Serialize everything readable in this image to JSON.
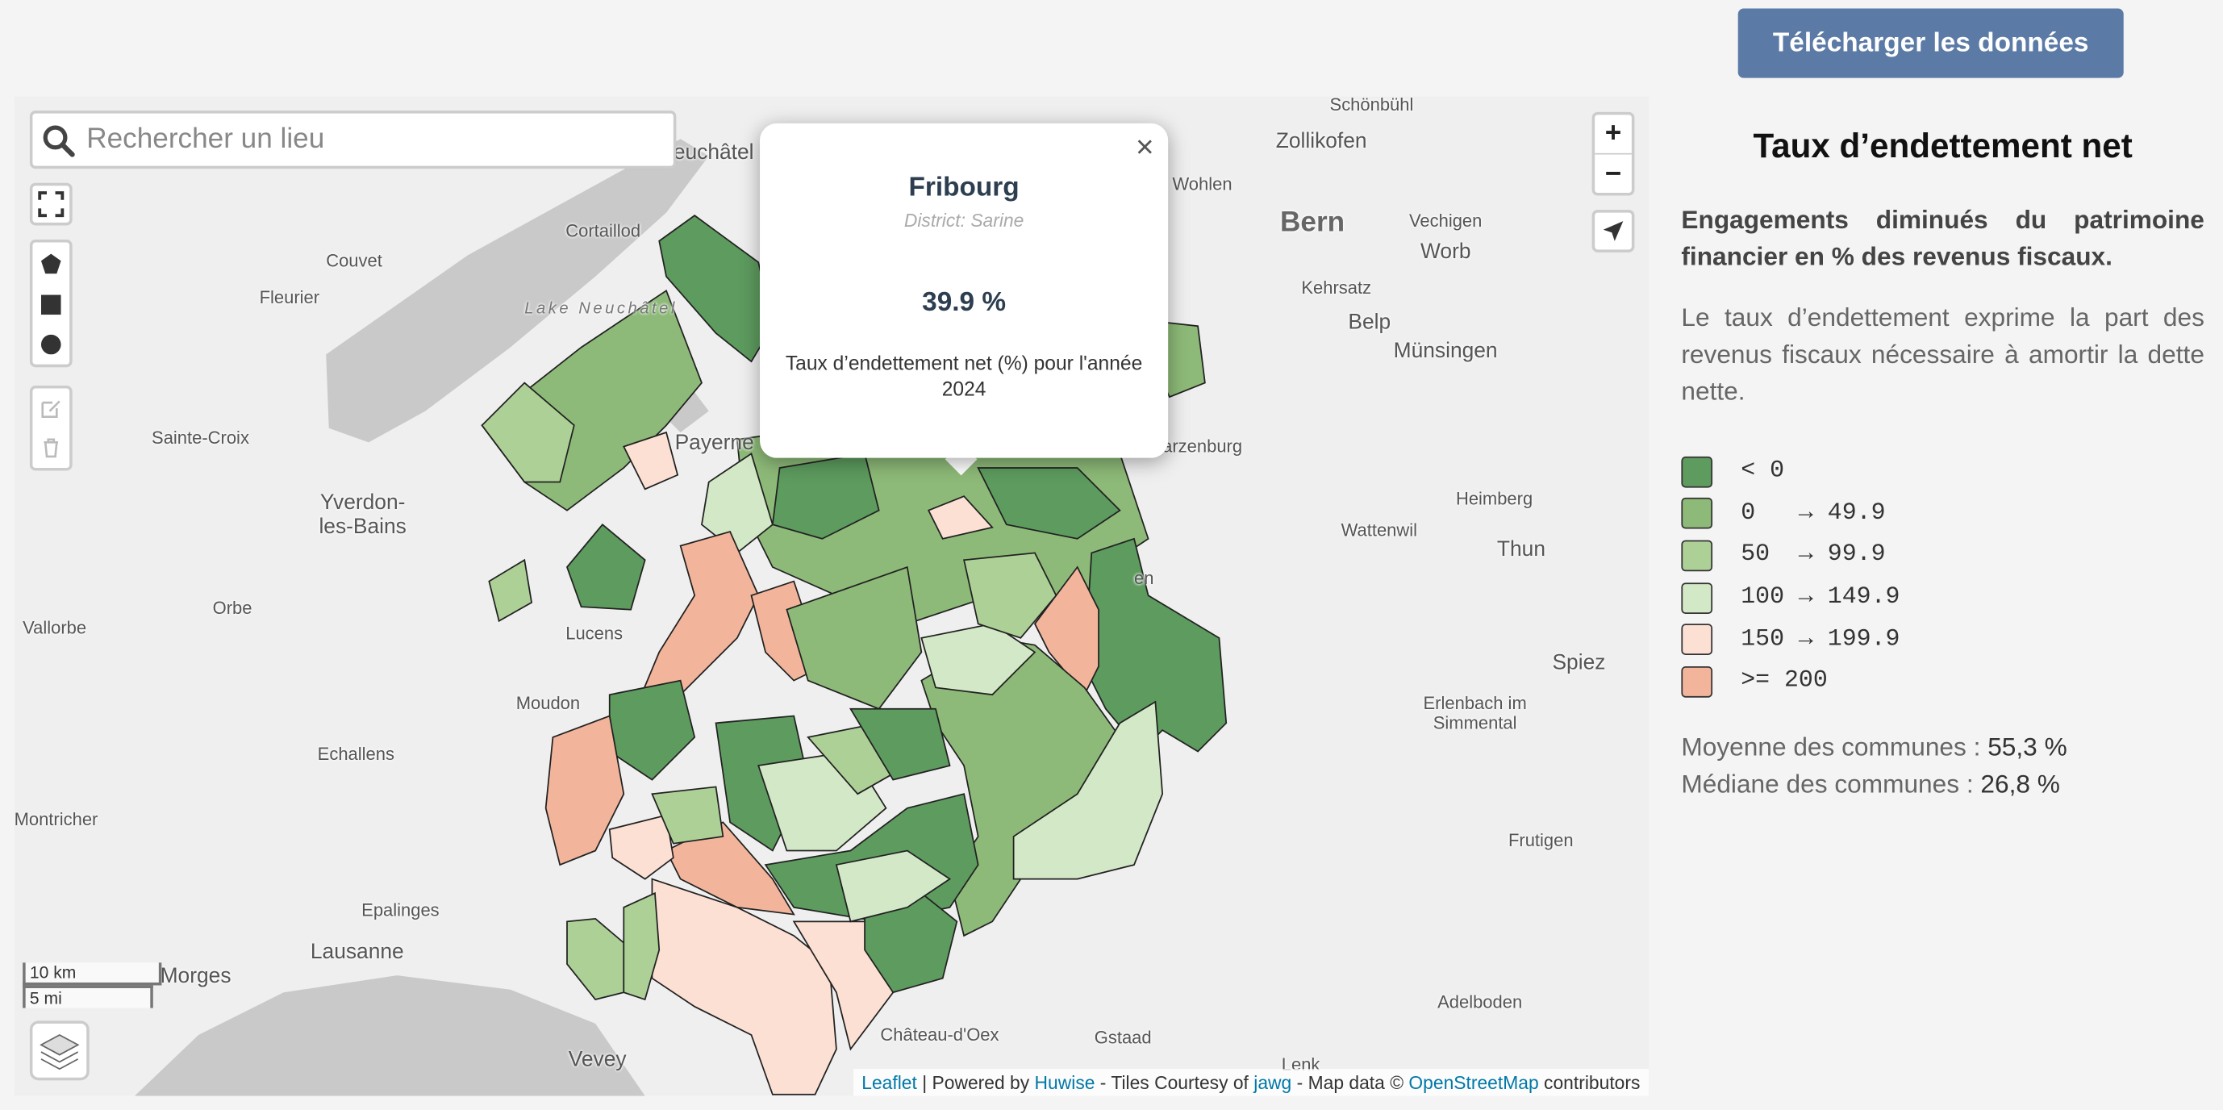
{
  "header": {
    "download_button": "Télécharger les données"
  },
  "map": {
    "search_placeholder": "Rechercher un lieu",
    "zoom_in": "+",
    "zoom_out": "−",
    "scale": [
      "10 km",
      "5 mi"
    ],
    "place_labels": [
      "Schönbühl",
      "Zollikofen",
      "euchâtel",
      "Wohlen",
      "Bern",
      "Vechigen",
      "Worb",
      "Kehrsatz",
      "Belp",
      "Münsingen",
      "Couvet",
      "Cortaillod",
      "Fleurier",
      "Lake Neuchâtel",
      "Sainte-Croix",
      "Payerne",
      "arzenburg",
      "Yverdon-\nles-Bains",
      "Heimberg",
      "Wattenwil",
      "Thun",
      "Orbe",
      "Vallorbe",
      "Lucens",
      "Spiez",
      "Moudon",
      "Erlenbach im\nSimmental",
      "Echallens",
      "Montricher",
      "Frutigen",
      "Epalinges",
      "Lausanne",
      "Morges",
      "Adelboden",
      "Château-d'Oex",
      "Gstaad",
      "Vevey",
      "Lenk",
      "en"
    ],
    "popup": {
      "title": "Fribourg",
      "subtitle": "District: Sarine",
      "value": "39.9 %",
      "description": "Taux d’endettement net (%) pour l'année 2024"
    },
    "attribution": [
      {
        "text": "Leaflet",
        "link": true
      },
      {
        "text": " | Powered by ",
        "link": false
      },
      {
        "text": "Huwise",
        "link": true
      },
      {
        "text": " - Tiles Courtesy of ",
        "link": false
      },
      {
        "text": "jawg",
        "link": true
      },
      {
        "text": " - Map data © ",
        "link": false
      },
      {
        "text": "OpenStreetMap",
        "link": true
      },
      {
        "text": " contributors",
        "link": false
      }
    ]
  },
  "panel": {
    "title": "Taux d’endettement net",
    "lead": "Engagements diminués du patrimoine financier en % des revenus fiscaux.",
    "text": "Le taux d’endettement exprime la part des revenus fiscaux nécessaire à amortir la dette nette.",
    "legend": [
      {
        "label": "< 0",
        "color": "#5d9b5e"
      },
      {
        "label": "0   → 49.9",
        "color": "#8dba78"
      },
      {
        "label": "50  → 99.9",
        "color": "#add096"
      },
      {
        "label": "100 → 149.9",
        "color": "#d2e8c6"
      },
      {
        "label": "150 → 199.9",
        "color": "#fbe0d3"
      },
      {
        "label": ">= 200",
        "color": "#f2b59b"
      }
    ],
    "stats": [
      {
        "label": "Moyenne des communes : ",
        "value": "55,3 %"
      },
      {
        "label": "Médiane des communes : ",
        "value": "26,8 %"
      }
    ]
  }
}
